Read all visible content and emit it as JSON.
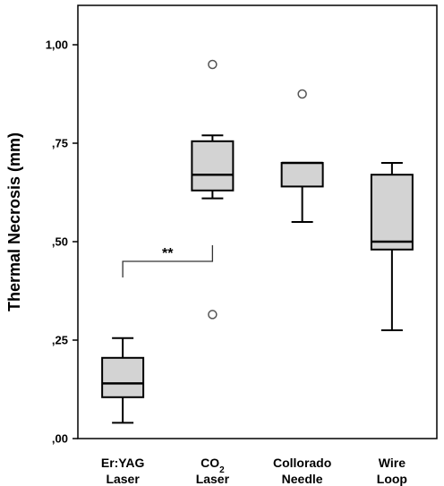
{
  "chart_data": {
    "type": "boxplot",
    "ylabel": "Thermal Necrosis (mm)",
    "ylim": [
      0,
      1.1
    ],
    "yticks": [
      {
        "value": 0.0,
        "label": ",00"
      },
      {
        "value": 0.25,
        "label": ",25"
      },
      {
        "value": 0.5,
        "label": ",50"
      },
      {
        "value": 0.75,
        "label": ",75"
      },
      {
        "value": 1.0,
        "label": "1,00"
      }
    ],
    "categories": [
      {
        "line1": "Er:YAG",
        "line2": "Laser"
      },
      {
        "line1": "CO",
        "line1_sub": "2",
        "line2": "Laser"
      },
      {
        "line1": "Collorado",
        "line2": "Needle"
      },
      {
        "line1": "Wire",
        "line2": "Loop"
      }
    ],
    "boxes": [
      {
        "whisker_low": 0.04,
        "q1": 0.105,
        "median": 0.14,
        "q3": 0.205,
        "whisker_high": 0.255,
        "outliers": []
      },
      {
        "whisker_low": 0.61,
        "q1": 0.63,
        "median": 0.67,
        "q3": 0.755,
        "whisker_high": 0.77,
        "outliers": [
          0.95,
          0.315
        ]
      },
      {
        "whisker_low": 0.55,
        "q1": 0.64,
        "median": 0.7,
        "q3": 0.7,
        "whisker_high": 0.7,
        "outliers": [
          0.875
        ]
      },
      {
        "whisker_low": 0.275,
        "q1": 0.48,
        "median": 0.5,
        "q3": 0.67,
        "whisker_high": 0.7,
        "outliers": []
      }
    ],
    "significance": {
      "from": 0,
      "to": 1,
      "level": 0.45,
      "label": "**"
    },
    "grid": false,
    "box_color": "#d3d3d3"
  }
}
